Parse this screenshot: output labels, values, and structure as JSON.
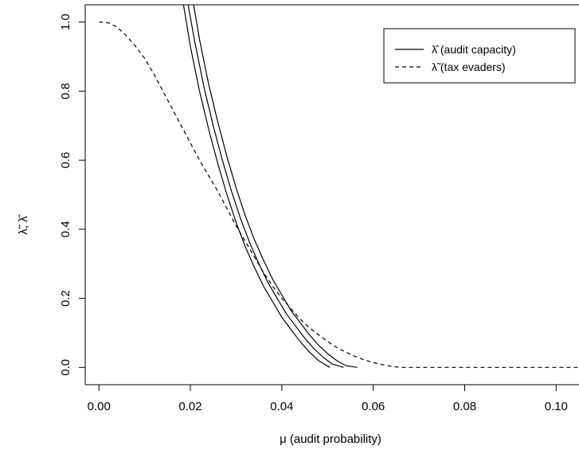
{
  "chart_data": {
    "type": "line",
    "xlabel": "μ (audit probability)",
    "ylabel": "λ̃, λ̂",
    "xlim": [
      -0.003,
      0.105
    ],
    "ylim": [
      -0.05,
      1.05
    ],
    "x_ticks": [
      0.0,
      0.02,
      0.04,
      0.06,
      0.08,
      0.1
    ],
    "x_tick_labels": [
      "0.00",
      "0.02",
      "0.04",
      "0.06",
      "0.08",
      "0.10"
    ],
    "y_ticks": [
      0.0,
      0.2,
      0.4,
      0.6,
      0.8,
      1.0
    ],
    "y_tick_labels": [
      "0.0",
      "0.2",
      "0.4",
      "0.6",
      "0.8",
      "1.0"
    ],
    "grid": false,
    "legend_position": "top-right",
    "legend": [
      {
        "label": "λ̂ (audit capacity)",
        "style": "solid"
      },
      {
        "label": "λ̃ (tax evaders)",
        "style": "dashed"
      }
    ],
    "series": [
      {
        "style": "solid",
        "x": [
          0.0185,
          0.02,
          0.022,
          0.024,
          0.026,
          0.028,
          0.03,
          0.032,
          0.034,
          0.036,
          0.038,
          0.04,
          0.042,
          0.044,
          0.046,
          0.048,
          0.0505
        ],
        "y": [
          1.05,
          0.93,
          0.8,
          0.69,
          0.59,
          0.5,
          0.42,
          0.35,
          0.29,
          0.235,
          0.19,
          0.145,
          0.11,
          0.075,
          0.045,
          0.02,
          0.0
        ]
      },
      {
        "style": "solid",
        "x": [
          0.0195,
          0.021,
          0.023,
          0.025,
          0.027,
          0.029,
          0.031,
          0.033,
          0.035,
          0.037,
          0.039,
          0.041,
          0.043,
          0.045,
          0.047,
          0.049,
          0.051,
          0.0535
        ],
        "y": [
          1.05,
          0.94,
          0.81,
          0.7,
          0.6,
          0.51,
          0.43,
          0.36,
          0.3,
          0.245,
          0.2,
          0.155,
          0.12,
          0.085,
          0.055,
          0.03,
          0.01,
          0.0
        ]
      },
      {
        "style": "solid",
        "x": [
          0.0207,
          0.022,
          0.024,
          0.026,
          0.028,
          0.03,
          0.032,
          0.034,
          0.036,
          0.038,
          0.04,
          0.042,
          0.044,
          0.046,
          0.048,
          0.05,
          0.052,
          0.054,
          0.0565
        ],
        "y": [
          1.05,
          0.95,
          0.82,
          0.71,
          0.61,
          0.52,
          0.44,
          0.37,
          0.31,
          0.255,
          0.21,
          0.165,
          0.13,
          0.095,
          0.065,
          0.04,
          0.02,
          0.005,
          0.0
        ]
      },
      {
        "style": "dashed",
        "x": [
          0.0,
          0.002,
          0.004,
          0.006,
          0.008,
          0.01,
          0.012,
          0.014,
          0.016,
          0.018,
          0.02,
          0.022,
          0.024,
          0.026,
          0.028,
          0.03,
          0.032,
          0.034,
          0.036,
          0.038,
          0.04,
          0.042,
          0.044,
          0.046,
          0.048,
          0.05,
          0.052,
          0.054,
          0.056,
          0.058,
          0.06,
          0.062,
          0.064,
          0.066,
          0.07,
          0.08,
          0.09,
          0.1,
          0.105
        ],
        "y": [
          1.0,
          0.998,
          0.985,
          0.96,
          0.93,
          0.895,
          0.85,
          0.8,
          0.75,
          0.7,
          0.65,
          0.6,
          0.555,
          0.51,
          0.46,
          0.41,
          0.365,
          0.32,
          0.275,
          0.235,
          0.2,
          0.17,
          0.14,
          0.115,
          0.095,
          0.075,
          0.058,
          0.044,
          0.032,
          0.022,
          0.014,
          0.008,
          0.003,
          0.0,
          0.0,
          0.0,
          0.0,
          0.0,
          0.0
        ]
      }
    ]
  }
}
